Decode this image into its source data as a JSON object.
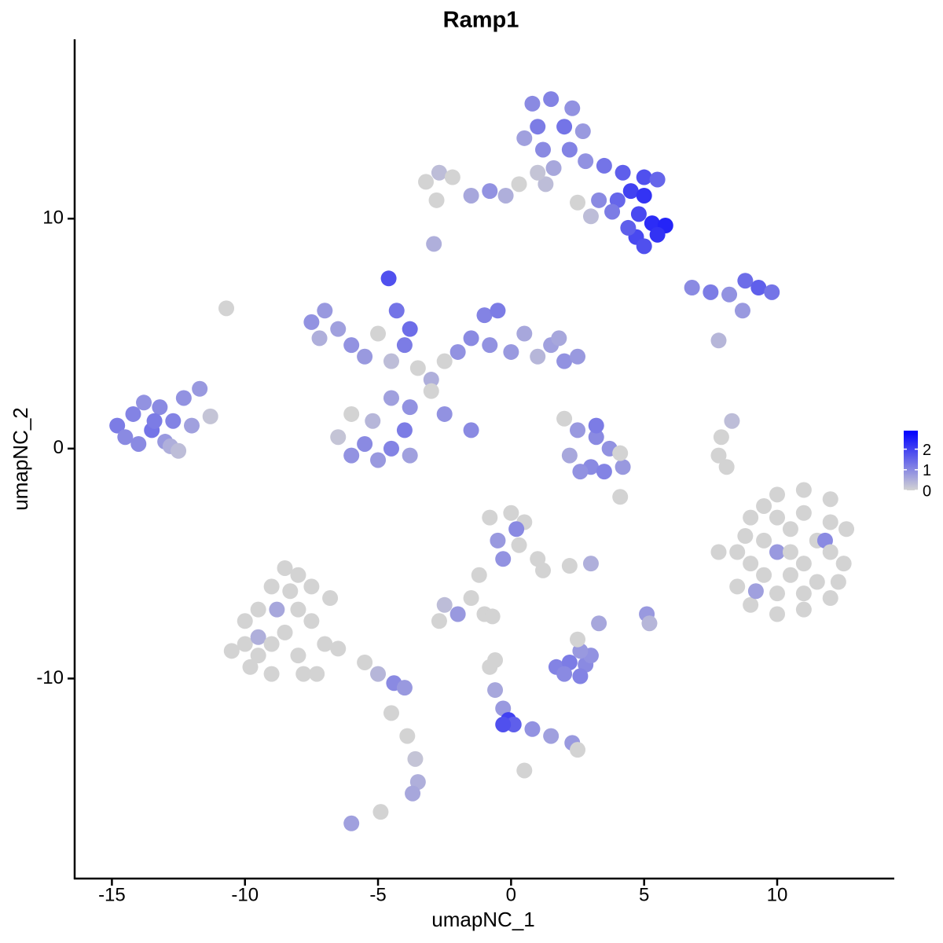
{
  "chart_data": {
    "type": "scatter",
    "title": "Ramp1",
    "x_label": "umapNC_1",
    "y_label": "umapNC_2",
    "xlim": [
      -16.4,
      14.4
    ],
    "ylim": [
      -18.7,
      17.8
    ],
    "xticks": [
      -15,
      -10,
      -5,
      0,
      5,
      10
    ],
    "yticks": [
      -10,
      0,
      10
    ],
    "grid": false,
    "colors": [
      "#d3d3d3",
      "#0000ff"
    ],
    "colorlim": [
      0,
      2.9
    ],
    "colorticks": [
      0,
      1,
      2
    ],
    "legend_position": "right",
    "x": [
      -14.8,
      -14.5,
      -14.2,
      -13.8,
      -13.5,
      -13.2,
      -13.0,
      -12.7,
      -12.3,
      -12.0,
      -11.7,
      -12.8,
      -12.5,
      -11.3,
      -14.0,
      -13.4,
      0.8,
      1.5,
      2.3,
      1.0,
      2,
      2.7,
      1.2,
      2.2,
      1.6,
      2.8,
      3.5,
      4.2,
      5,
      5.5,
      4.5,
      5.0,
      4.0,
      4.8,
      5.3,
      5.8,
      5.5,
      4.7,
      5.0,
      4.4,
      3.8,
      3.3,
      1.3,
      1.0,
      0.5,
      -3.2,
      -2.7,
      -2.2,
      -2.8,
      -1.5,
      -0.8,
      -0.2,
      0.3,
      2.5,
      3,
      -2.9,
      -7.5,
      -7,
      -6.5,
      -6,
      -5.5,
      -7.2,
      -5,
      -4.5,
      -4,
      -3.5,
      -3,
      -2.5,
      -2,
      -1.5,
      -1.0,
      -0.5,
      -0.8,
      0,
      0.5,
      1.0,
      1.5,
      2,
      2.5,
      1.8,
      -4.6,
      -4.3,
      -3.8,
      -6.5,
      -6,
      -6,
      -5.5,
      -5,
      -4.5,
      -4,
      -3.8,
      -4.5,
      -5.2,
      -3.8,
      -2.5,
      -1.5,
      -3.0,
      -10.7,
      6.8,
      7.5,
      8.2,
      8.8,
      9.3,
      9.8,
      8.7,
      7.8,
      2.5,
      3.2,
      3.7,
      4.2,
      3.0,
      2.2,
      2.6,
      3.5,
      2.0,
      3.2,
      4.1,
      4.1,
      7.9,
      8.3,
      7.8,
      8.1,
      8.5,
      9,
      9.5,
      10,
      11,
      12,
      12.6,
      12.5,
      12,
      11,
      10,
      9,
      8.5,
      9.5,
      10.5,
      11.5,
      10.5,
      11.5,
      9.5,
      10,
      11.8,
      9.2,
      7.8,
      10,
      11,
      12,
      12,
      11,
      10,
      11,
      9,
      8.8,
      12.3,
      10.5,
      -10,
      -9.5,
      -9,
      -8.5,
      -8,
      -7.5,
      -7.5,
      -8,
      -9,
      -8.5,
      -9.5,
      -7.3,
      -8.8,
      -9.5,
      -6.5,
      -5.5,
      -5,
      -4.4,
      -4.0,
      -10.5,
      -4.5,
      -3.9,
      -3.6,
      -3.5,
      -3.7,
      -6,
      -4.9,
      -10,
      -9,
      -8,
      -8.3,
      -7,
      -7.8,
      -9.8,
      -6.8,
      -0.8,
      0,
      0.5,
      -0.5,
      0.3,
      1,
      1.2,
      -0.3,
      0.2,
      -1.2,
      -1.5,
      -2.5,
      -2.0,
      -2.7,
      -1.0,
      -0.7,
      3.0,
      2.2,
      5.1,
      5.2,
      3.3,
      1.7,
      2.2,
      2.8,
      3.0,
      2.6,
      2.0,
      2.6,
      2.5,
      -0.8,
      -0.6,
      -0.3,
      -0.1,
      0.1,
      -0.3,
      0.8,
      1.5,
      2.3,
      2.5,
      0.5,
      -0.6
    ],
    "y": [
      1.0,
      0.5,
      1.5,
      2.0,
      0.8,
      1.8,
      0.3,
      1.2,
      2.2,
      1.0,
      2.6,
      0.1,
      -0.1,
      1.4,
      0.2,
      1.2,
      15,
      15.2,
      14.8,
      14,
      14,
      13.8,
      13,
      13,
      12.2,
      12.5,
      12.3,
      12,
      11.8,
      11.7,
      11.2,
      11.0,
      10.8,
      10.2,
      9.8,
      9.7,
      9.3,
      9.2,
      8.8,
      9.6,
      10.3,
      10.8,
      11.5,
      12.0,
      13.5,
      11.6,
      12.0,
      11.8,
      10.8,
      11.0,
      11.2,
      11.0,
      11.5,
      10.7,
      10.1,
      8.9,
      5.5,
      6,
      5.2,
      4.5,
      4.0,
      4.8,
      5.0,
      3.8,
      4.5,
      3.5,
      3.0,
      3.8,
      4.2,
      4.8,
      5.8,
      6.0,
      4.5,
      4.2,
      5.0,
      4.0,
      4.5,
      3.8,
      4.0,
      4.8,
      7.4,
      6.0,
      5.2,
      0.5,
      1.5,
      -0.3,
      0.2,
      -0.5,
      0.0,
      0.8,
      1.8,
      2.2,
      1.2,
      -0.3,
      1.5,
      0.8,
      2.5,
      6.1,
      7.0,
      6.8,
      6.7,
      7.3,
      7.0,
      6.8,
      6.0,
      4.7,
      0.8,
      0.5,
      0.0,
      -0.8,
      -0.8,
      -0.3,
      -1.0,
      -1.0,
      1.3,
      1.0,
      -0.2,
      -2.1,
      0.5,
      1.2,
      -0.3,
      -0.8,
      -4.5,
      -3,
      -2.5,
      -2,
      -1.8,
      -2.2,
      -3.5,
      -5,
      -6.5,
      -7,
      -7.2,
      -6.8,
      -6,
      -4,
      -3.5,
      -4,
      -5.5,
      -5.8,
      -5.5,
      -4.5,
      -4.0,
      -6.2,
      -4.5,
      -3,
      -2.8,
      -3.2,
      -4.5,
      -5,
      -6.3,
      -6.3,
      -5,
      -3.8,
      -5.8,
      -4.5,
      -8.5,
      -7,
      -6,
      -5.2,
      -5.5,
      -6,
      -7.5,
      -9,
      -9.8,
      -8,
      -9,
      -9.8,
      -7,
      -8.2,
      -8.7,
      -9.3,
      -9.8,
      -10.2,
      -10.4,
      -8.8,
      -11.5,
      -12.5,
      -13.5,
      -14.5,
      -15.0,
      -16.3,
      -15.8,
      -7.5,
      -8.5,
      -7,
      -6.2,
      -8.5,
      -9.8,
      -9.5,
      -6.5,
      -3,
      -2.8,
      -3.2,
      -4,
      -4.2,
      -4.8,
      -5.3,
      -4.8,
      -3.5,
      -5.5,
      -6.5,
      -6.8,
      -7.2,
      -7.5,
      -7.2,
      -7.3,
      -5,
      -5.1,
      -7.2,
      -7.6,
      -7.6,
      -9.5,
      -9.3,
      -9.4,
      -9.0,
      -8.8,
      -9.8,
      -9.9,
      -8.3,
      -9.5,
      -10.5,
      -11.3,
      -11.8,
      -12.0,
      -12.0,
      -12.2,
      -12.5,
      -12.8,
      -13.1,
      -14.0,
      -9.2
    ],
    "values": [
      1.2,
      1.0,
      1.1,
      0.9,
      1.3,
      1.0,
      0.8,
      1.1,
      0.9,
      0.7,
      0.8,
      0.5,
      0.3,
      0.2,
      1.0,
      1.2,
      1.0,
      1.1,
      0.9,
      1.2,
      1.3,
      0.8,
      1.0,
      1.1,
      0.6,
      0.9,
      1.3,
      1.6,
      1.8,
      1.5,
      2.0,
      2.2,
      1.5,
      1.9,
      2.3,
      2.4,
      2.2,
      1.9,
      1.8,
      1.6,
      1.2,
      1.0,
      0.3,
      0.2,
      0.7,
      0,
      0.3,
      0,
      0,
      0.6,
      0.9,
      0.5,
      0,
      0,
      0.3,
      0.5,
      0.9,
      0.8,
      0.7,
      0.9,
      0.8,
      0.5,
      0,
      0.3,
      1.2,
      0,
      0.5,
      0,
      0.9,
      1.0,
      1.1,
      1.2,
      0.9,
      0.8,
      0.6,
      0.4,
      0.7,
      0.9,
      0.8,
      0.6,
      1.8,
      1.3,
      1.4,
      0.2,
      0,
      0.9,
      1.0,
      0.8,
      1.1,
      1.2,
      0.9,
      0.7,
      0.4,
      0.7,
      0.9,
      1.0,
      0,
      0,
      1.0,
      1.2,
      0.9,
      1.4,
      1.6,
      1.3,
      0.8,
      0.4,
      0.8,
      1.0,
      0.9,
      0.8,
      1.0,
      0.6,
      0.9,
      1.1,
      0,
      1.2,
      0,
      0,
      0,
      0.3,
      0,
      0,
      0,
      0,
      0,
      0,
      0,
      0,
      0,
      0,
      0,
      0,
      0,
      0,
      0,
      0,
      0,
      0,
      0,
      0,
      0,
      0.8,
      1.0,
      0.7,
      0,
      0,
      0,
      0,
      0,
      0,
      0,
      0,
      0,
      0,
      0,
      0,
      0,
      0,
      0,
      0,
      0,
      0,
      0,
      0,
      0,
      0,
      0,
      0,
      0.6,
      0.5,
      0,
      0,
      0.4,
      1.0,
      0.8,
      0,
      0,
      0,
      0.2,
      0.5,
      0.6,
      0.7,
      0,
      0,
      0,
      0,
      0,
      0,
      0,
      0,
      0,
      0,
      0,
      0,
      0.8,
      0,
      0,
      0,
      0.9,
      1.0,
      0,
      0,
      0.3,
      0.8,
      0,
      0,
      0,
      0.5,
      0,
      0.8,
      0.4,
      0.6,
      1.1,
      1.2,
      1.0,
      0.9,
      0.8,
      1.0,
      1.1,
      0,
      0,
      0.6,
      0.8,
      2.0,
      1.6,
      1.8,
      0.9,
      0.7,
      0.8,
      0,
      0,
      0
    ]
  }
}
